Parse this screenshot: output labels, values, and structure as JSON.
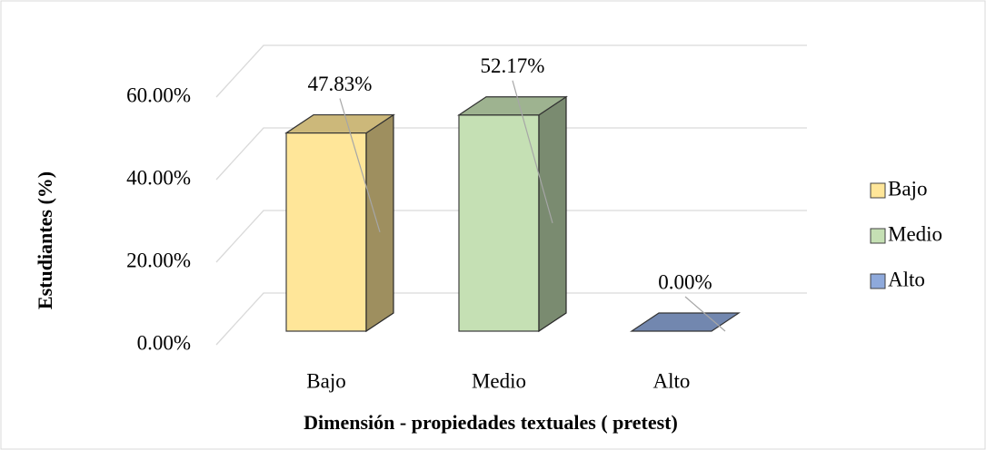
{
  "chart_data": {
    "type": "bar3d",
    "categories": [
      "Bajo",
      "Medio",
      "Alto"
    ],
    "values": [
      47.83,
      52.17,
      0
    ],
    "value_labels": [
      "47.83%",
      "52.17%",
      "0.00%"
    ],
    "colors": [
      "#ffe699",
      "#c5e0b4",
      "#8ea9db"
    ],
    "ylim": [
      0,
      60
    ],
    "yticks": [
      {
        "value": 0,
        "label": "0.00%"
      },
      {
        "value": 20,
        "label": "20.00%"
      },
      {
        "value": 40,
        "label": "40.00%"
      },
      {
        "value": 60,
        "label": "60.00%"
      }
    ],
    "xlabel": "Dimensión -  propiedades textuales ( pretest)",
    "ylabel": "Estudiantes (%)",
    "grid": true,
    "legend": "right"
  }
}
